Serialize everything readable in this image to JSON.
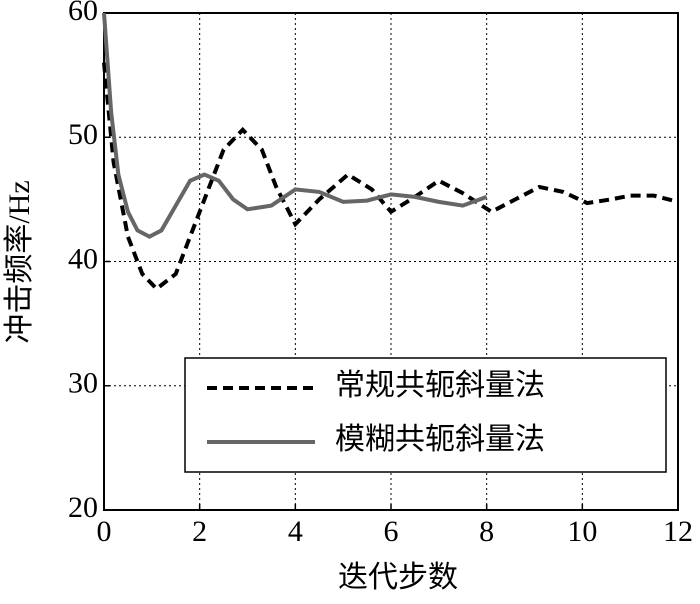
{
  "chart_data": {
    "type": "line",
    "xlabel": "迭代步数",
    "ylabel": "冲击频率/Hz",
    "xlim": [
      0,
      12
    ],
    "xticks": [
      0,
      2,
      4,
      6,
      8,
      10,
      12
    ],
    "ylim": [
      20,
      60
    ],
    "yticks": [
      20,
      30,
      40,
      50,
      60
    ],
    "grid": true,
    "legend": "lower right",
    "series": [
      {
        "name": "常规共轭斜量法",
        "color": "#000000",
        "dash": true,
        "x": [
          0,
          0.2,
          0.5,
          0.8,
          1.1,
          1.5,
          2,
          2.5,
          2.9,
          3.3,
          3.6,
          4,
          4.5,
          5.1,
          5.6,
          6,
          6.5,
          7,
          7.5,
          8.1,
          8.6,
          9.1,
          9.6,
          10.1,
          10.6,
          11,
          11.5,
          12
        ],
        "values": [
          56,
          48,
          42,
          39,
          37.8,
          39,
          44,
          49,
          50.6,
          49,
          46,
          43,
          45,
          47,
          45.8,
          44,
          45.2,
          46.5,
          45.5,
          44,
          45,
          46,
          45.6,
          44.7,
          45,
          45.3,
          45.3,
          44.8
        ]
      },
      {
        "name": "模糊共轭斜量法",
        "color": "#666666",
        "dash": false,
        "x": [
          0,
          0.15,
          0.3,
          0.5,
          0.7,
          0.95,
          1.2,
          1.5,
          1.8,
          2.1,
          2.4,
          2.7,
          3,
          3.5,
          4,
          4.5,
          5,
          5.5,
          6,
          6.5,
          7,
          7.5,
          8
        ],
        "values": [
          60,
          52,
          47,
          44,
          42.5,
          42,
          42.5,
          44.5,
          46.5,
          47,
          46.5,
          45,
          44.2,
          44.5,
          45.8,
          45.6,
          44.8,
          44.9,
          45.4,
          45.2,
          44.8,
          44.5,
          45.2
        ]
      }
    ]
  }
}
